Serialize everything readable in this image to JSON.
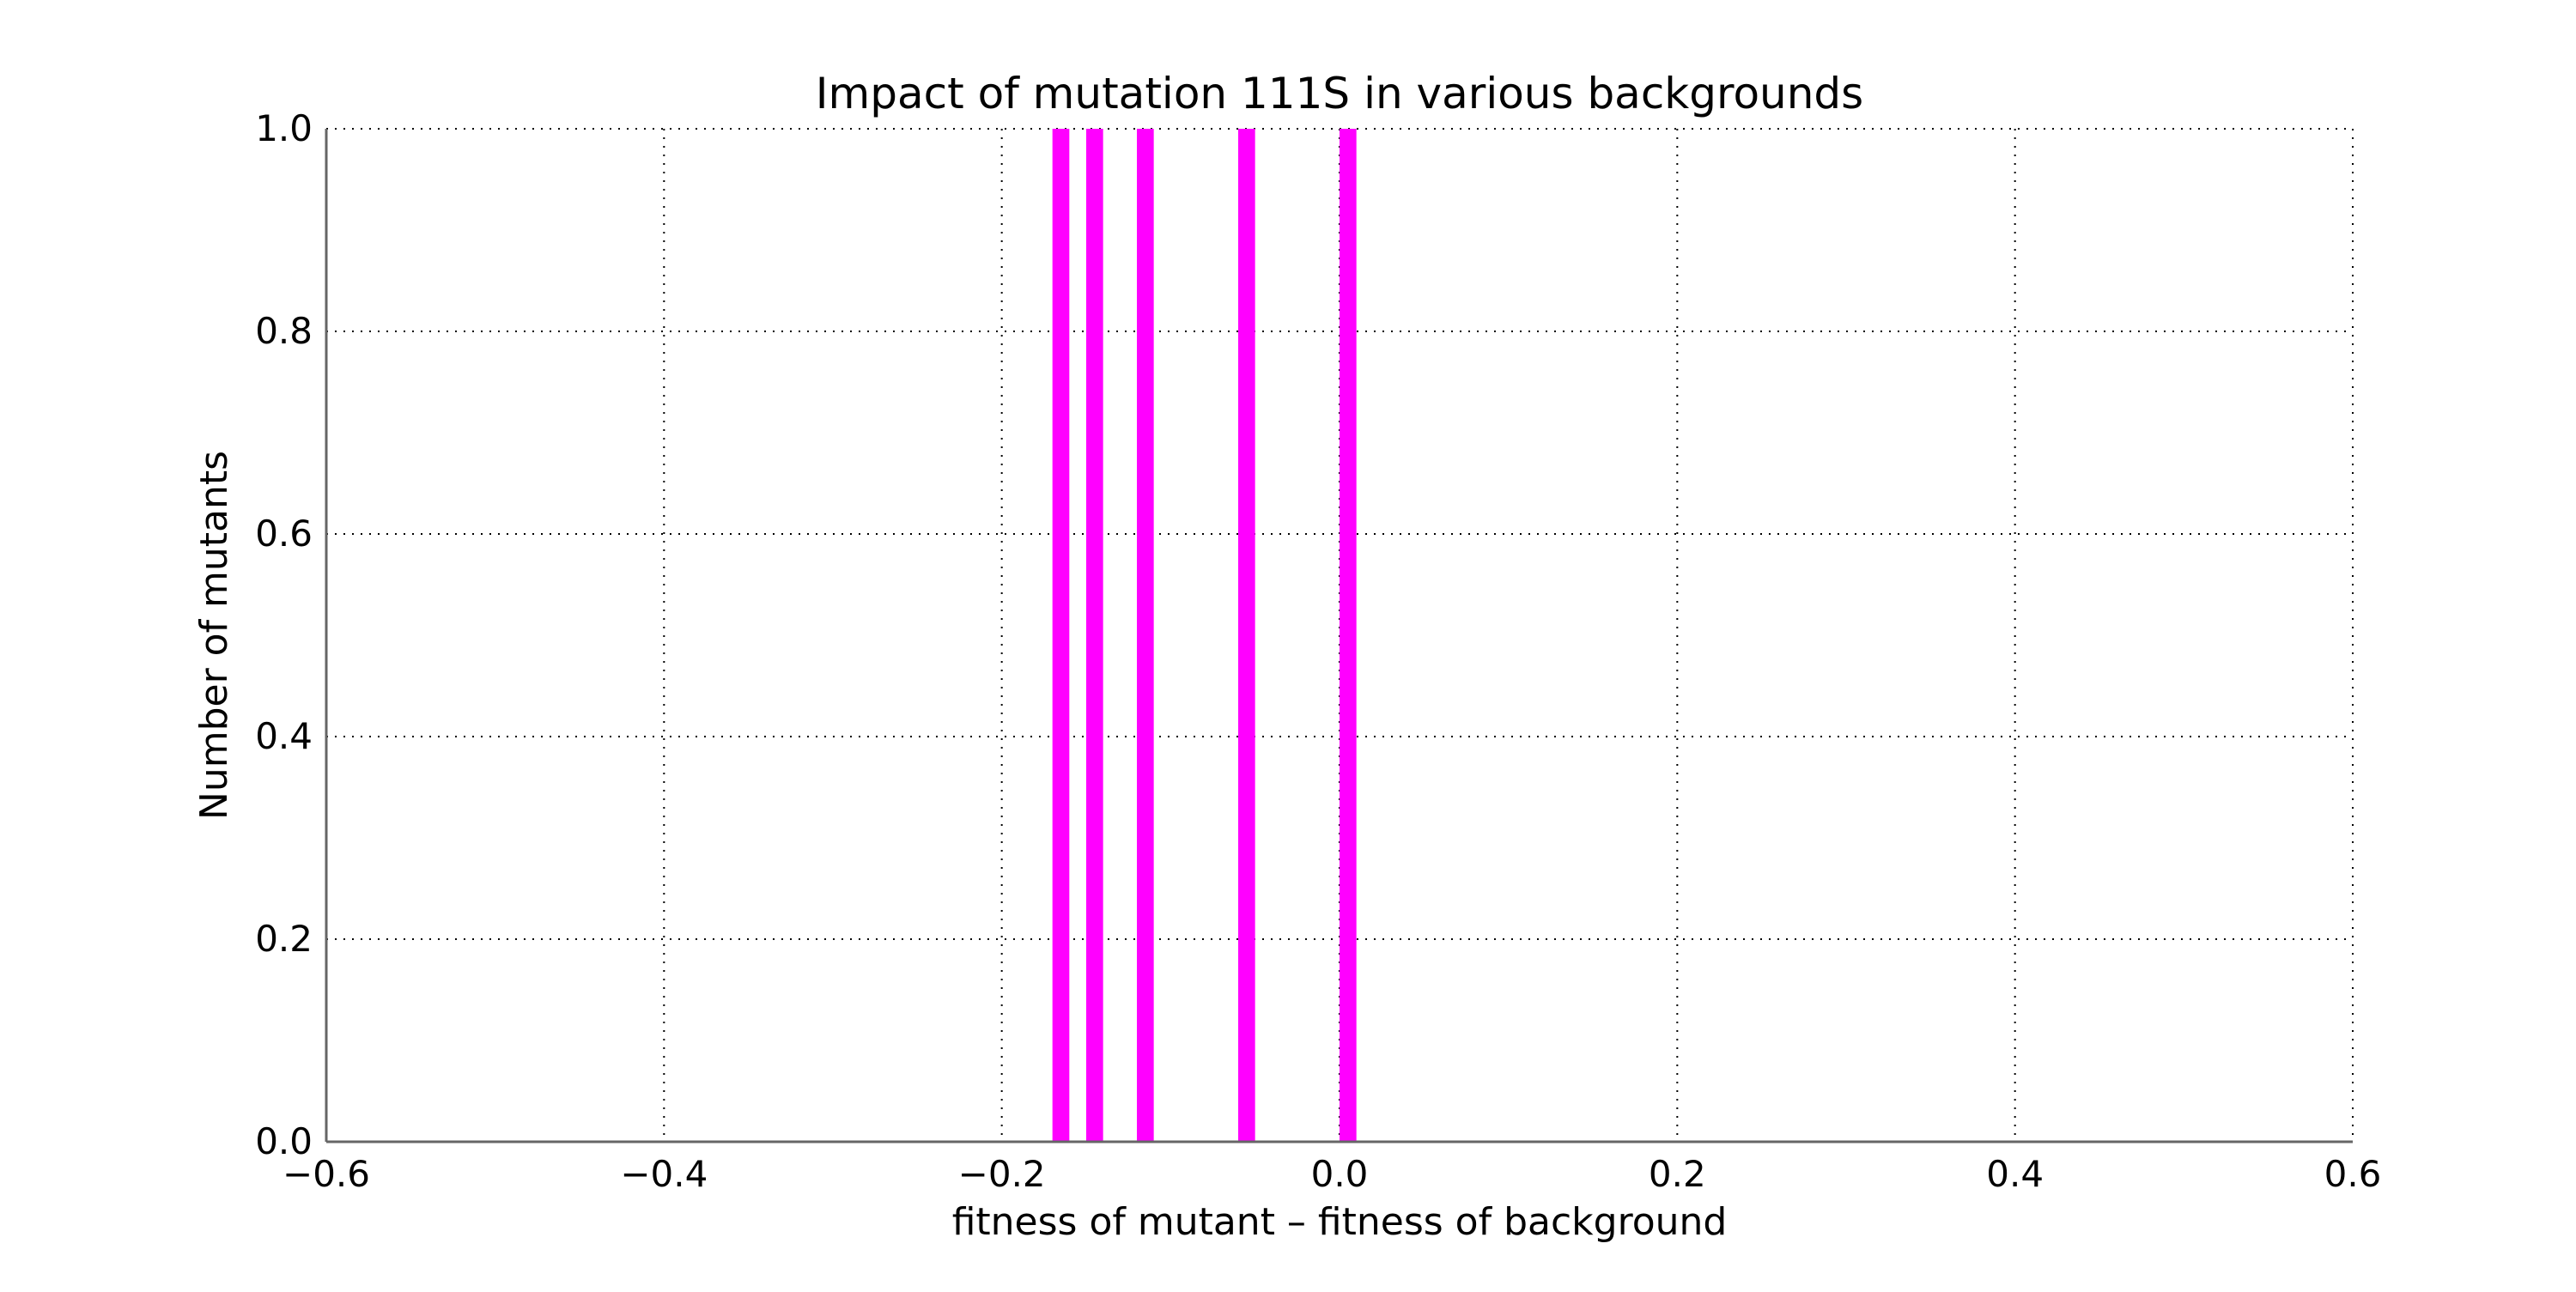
{
  "chart_data": {
    "type": "bar",
    "title": "Impact of mutation 111S in various backgrounds",
    "xlabel": "fitness of mutant  –  fitness of background",
    "ylabel": "Number of mutants",
    "xlim": [
      -0.6,
      0.6
    ],
    "ylim": [
      0.0,
      1.0
    ],
    "xticks": [
      -0.6,
      -0.4,
      -0.2,
      0.0,
      0.2,
      0.4,
      0.6
    ],
    "xtick_labels": [
      "−0.6",
      "−0.4",
      "−0.2",
      "0.0",
      "0.2",
      "0.4",
      "0.6"
    ],
    "yticks": [
      0.0,
      0.2,
      0.4,
      0.6,
      0.8,
      1.0
    ],
    "ytick_labels": [
      "0.0",
      "0.2",
      "0.4",
      "0.6",
      "0.8",
      "1.0"
    ],
    "grid": true,
    "bar_color": "#ff00ff",
    "bars": [
      {
        "x": -0.165,
        "height": 1.0
      },
      {
        "x": -0.145,
        "height": 1.0
      },
      {
        "x": -0.115,
        "height": 1.0
      },
      {
        "x": -0.055,
        "height": 1.0
      },
      {
        "x": 0.005,
        "height": 1.0
      }
    ],
    "bar_width": 0.01
  }
}
